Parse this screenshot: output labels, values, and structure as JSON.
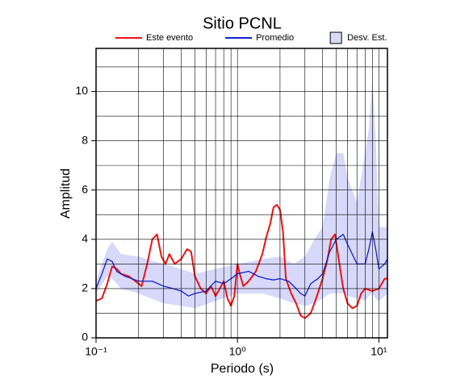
{
  "chart_data": {
    "type": "line",
    "title": "Sitio PCNL",
    "xlabel": "Periodo (s)",
    "ylabel": "Amplitud",
    "xscale": "log",
    "xlim": [
      0.1,
      11.5
    ],
    "ylim": [
      0,
      11.75
    ],
    "xticks": [
      {
        "value": 0.1,
        "label": "10⁻¹"
      },
      {
        "value": 1,
        "label": "10⁰"
      },
      {
        "value": 10,
        "label": "10¹"
      }
    ],
    "x_minor_ticks": [
      0.2,
      0.3,
      0.4,
      0.5,
      0.6,
      0.7,
      0.8,
      0.9,
      2,
      3,
      4,
      5,
      6,
      7,
      8,
      9
    ],
    "yticks": [
      0,
      2,
      4,
      6,
      8,
      10
    ],
    "y_minor_ticks": [
      1,
      3,
      5,
      7,
      9,
      11
    ],
    "grid": true,
    "legend": "top",
    "band": {
      "name": "Desv. Est.",
      "color": "#d8d8fb",
      "x": [
        0.1,
        0.12,
        0.13,
        0.15,
        0.2,
        0.3,
        0.4,
        0.5,
        0.7,
        1.0,
        1.5,
        2.0,
        2.5,
        3.0,
        3.5,
        4.0,
        4.5,
        5.0,
        5.6,
        6.0,
        7.0,
        8.0,
        8.5,
        9.0,
        9.5,
        10.0,
        11.0,
        11.5
      ],
      "upper": [
        2.3,
        3.6,
        3.9,
        3.4,
        3.3,
        3.0,
        2.8,
        2.6,
        2.8,
        3.0,
        3.2,
        3.3,
        3.0,
        3.3,
        4.0,
        4.5,
        6.5,
        7.5,
        7.5,
        6.5,
        5.5,
        7.5,
        8.5,
        10.5,
        8.0,
        4.5,
        4.5,
        4.5
      ],
      "lower": [
        1.8,
        2.5,
        2.4,
        2.0,
        1.8,
        1.4,
        1.3,
        1.2,
        1.5,
        1.8,
        1.8,
        1.6,
        1.4,
        1.3,
        1.4,
        1.6,
        1.8,
        1.8,
        1.8,
        1.7,
        1.6,
        1.5,
        1.7,
        1.8,
        1.6,
        1.5,
        1.7,
        1.8
      ]
    },
    "series": [
      {
        "name": "Este evento",
        "color": "#ee1111",
        "x": [
          0.1,
          0.11,
          0.12,
          0.13,
          0.14,
          0.15,
          0.17,
          0.19,
          0.21,
          0.23,
          0.25,
          0.27,
          0.29,
          0.31,
          0.33,
          0.36,
          0.4,
          0.44,
          0.47,
          0.5,
          0.55,
          0.6,
          0.65,
          0.7,
          0.75,
          0.8,
          0.85,
          0.9,
          0.95,
          1.0,
          1.05,
          1.1,
          1.2,
          1.35,
          1.5,
          1.6,
          1.7,
          1.8,
          1.9,
          2.0,
          2.1,
          2.2,
          2.4,
          2.6,
          2.8,
          3.0,
          3.3,
          3.6,
          4.0,
          4.3,
          4.6,
          4.9,
          5.2,
          5.6,
          6.0,
          6.5,
          7.0,
          7.5,
          8.0,
          9.0,
          10.0,
          11.0,
          11.5
        ],
        "values": [
          1.5,
          1.6,
          2.2,
          2.9,
          2.8,
          2.6,
          2.5,
          2.3,
          2.1,
          3.0,
          4.0,
          4.2,
          3.3,
          3.0,
          3.4,
          3.0,
          3.2,
          3.6,
          3.5,
          2.5,
          2.0,
          1.8,
          2.1,
          1.7,
          2.0,
          2.3,
          1.6,
          1.3,
          1.7,
          3.0,
          2.5,
          2.1,
          2.3,
          2.7,
          3.4,
          4.1,
          4.6,
          5.3,
          5.4,
          5.2,
          4.3,
          2.4,
          1.8,
          1.4,
          0.9,
          0.8,
          1.0,
          1.6,
          2.4,
          3.1,
          4.0,
          4.2,
          3.2,
          2.0,
          1.4,
          1.2,
          1.3,
          1.8,
          2.0,
          1.9,
          2.0,
          2.4,
          2.4
        ]
      },
      {
        "name": "Promedio",
        "color": "#1122cc",
        "x": [
          0.1,
          0.11,
          0.12,
          0.13,
          0.14,
          0.16,
          0.18,
          0.2,
          0.25,
          0.3,
          0.35,
          0.4,
          0.45,
          0.5,
          0.6,
          0.7,
          0.8,
          0.9,
          1.0,
          1.2,
          1.4,
          1.6,
          1.8,
          2.0,
          2.3,
          2.6,
          2.8,
          3.0,
          3.3,
          3.7,
          4.0,
          4.5,
          5.0,
          5.6,
          6.0,
          7.0,
          8.0,
          8.5,
          9.0,
          9.5,
          10.0,
          11.0,
          11.5
        ],
        "values": [
          2.0,
          2.6,
          3.2,
          3.1,
          2.7,
          2.5,
          2.4,
          2.3,
          2.3,
          2.1,
          2.0,
          1.9,
          1.7,
          1.8,
          1.9,
          2.3,
          2.2,
          2.4,
          2.6,
          2.7,
          2.5,
          2.4,
          2.35,
          2.4,
          2.3,
          2.0,
          1.8,
          1.7,
          2.2,
          2.4,
          2.6,
          3.5,
          4.0,
          4.2,
          3.8,
          3.0,
          3.0,
          3.6,
          4.3,
          3.6,
          2.8,
          3.0,
          3.2
        ]
      }
    ]
  }
}
